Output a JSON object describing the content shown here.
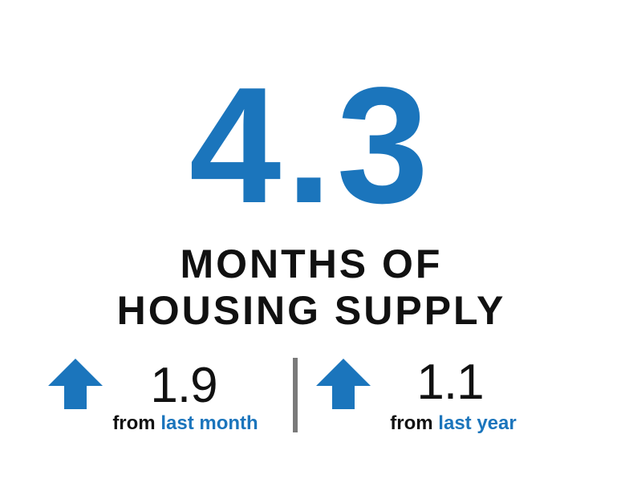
{
  "headline": {
    "value": 4.3,
    "label_lines": [
      "MONTHS OF",
      "HOUSING SUPPLY"
    ]
  },
  "changes": [
    {
      "value": 1.9,
      "prefix": "from",
      "period": "last month"
    },
    {
      "value": 1.1,
      "prefix": "from",
      "period": "last year"
    }
  ]
}
